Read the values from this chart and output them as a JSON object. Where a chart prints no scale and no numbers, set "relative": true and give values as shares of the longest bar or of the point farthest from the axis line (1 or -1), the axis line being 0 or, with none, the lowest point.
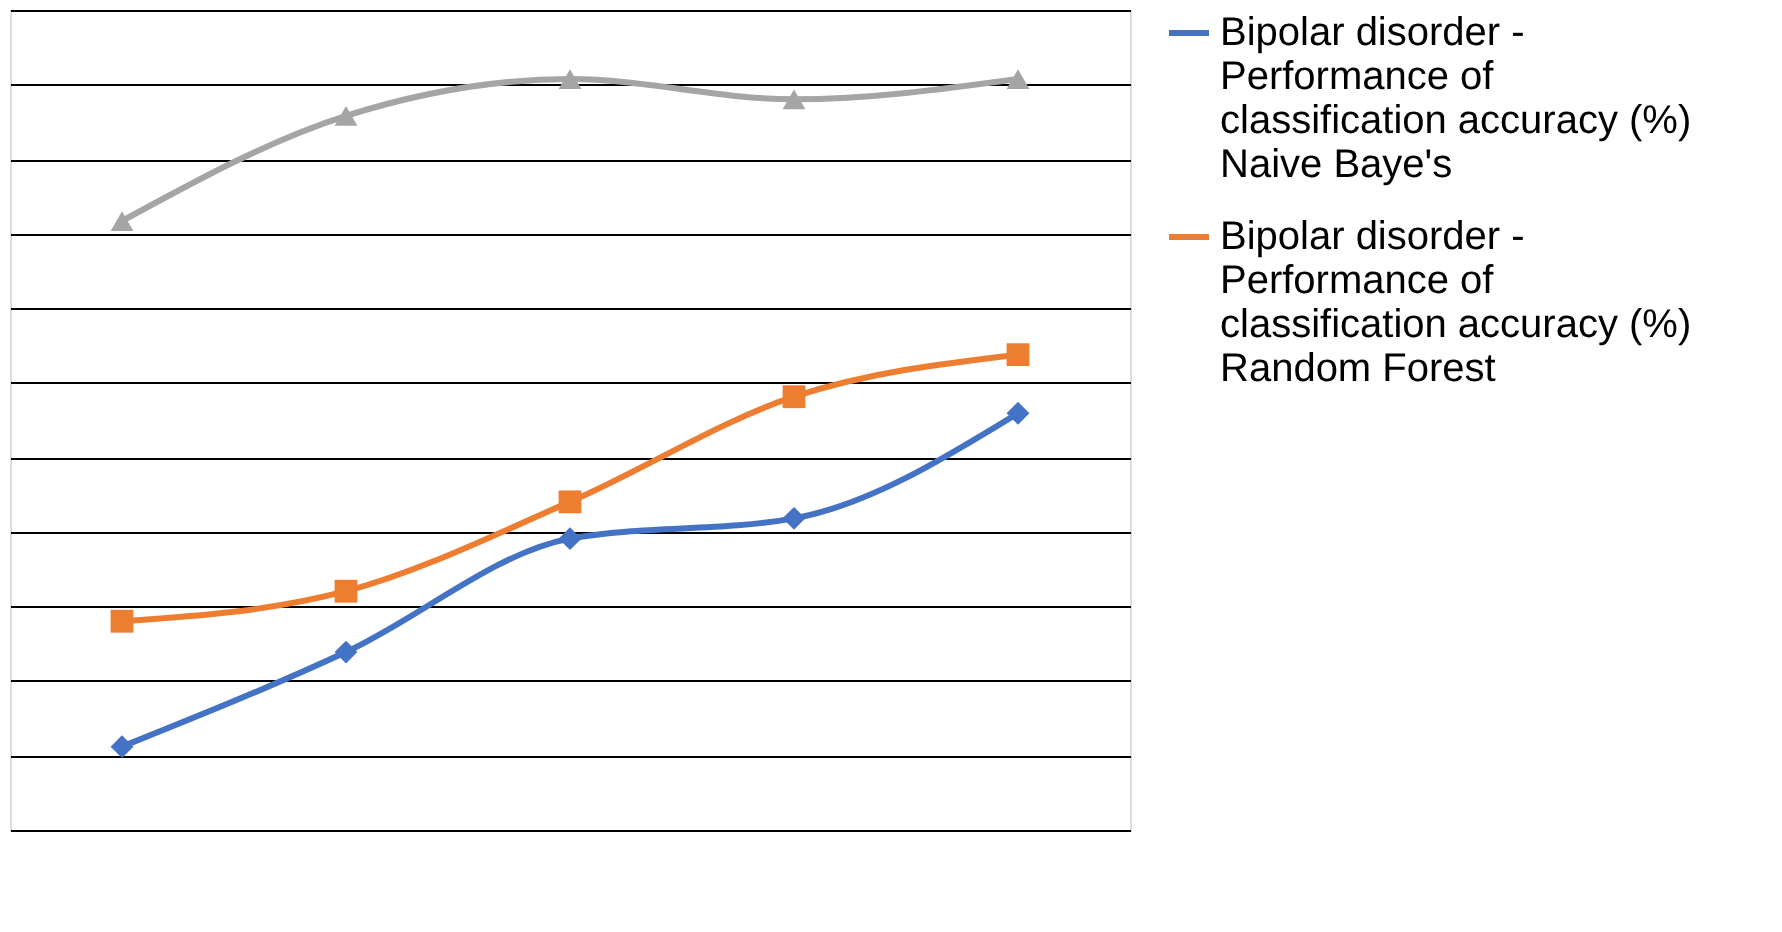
{
  "chart_data": {
    "type": "line",
    "relative": true,
    "categories": [
      null,
      null,
      null,
      null,
      null
    ],
    "grid": "y",
    "legend": "right",
    "line_style": "solid",
    "series": [
      {
        "name": "Bipolar disorder - Performance of classification accuracy (%) Naive Baye's",
        "color": "#4472c4",
        "marker": "diamond",
        "values": [
          0.111,
          0.237,
          0.388,
          0.415,
          0.555
        ]
      },
      {
        "name": "Bipolar disorder - Performance of classification accuracy (%) Random Forest",
        "color": "#ed7d31",
        "marker": "square",
        "values": [
          0.278,
          0.318,
          0.437,
          0.577,
          0.633
        ]
      },
      {
        "color": "#a5a5a5",
        "marker": "triangle",
        "values": [
          0.811,
          0.951,
          1,
          0.973,
          1
        ]
      }
    ]
  }
}
